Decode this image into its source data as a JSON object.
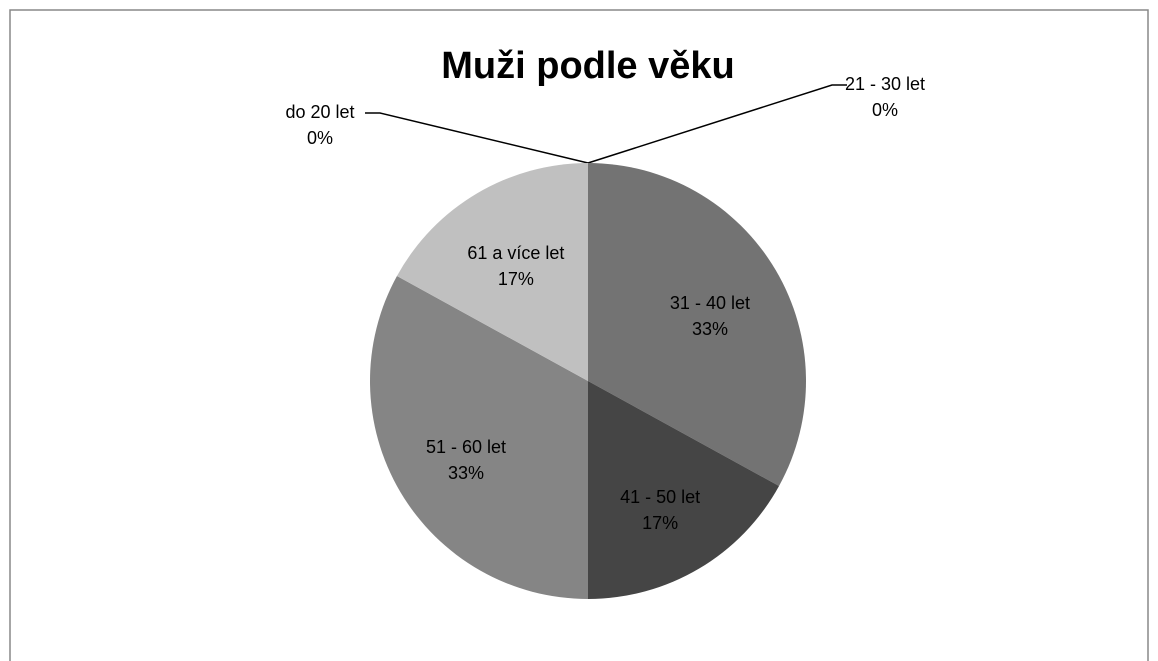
{
  "chart_data": {
    "type": "pie",
    "title": "Muži podle věku",
    "categories": [
      "do 20 let",
      "21 - 30 let",
      "31 - 40 let",
      "41 - 50 let",
      "51 - 60 let",
      "61 a více let"
    ],
    "values": [
      0,
      0,
      33,
      17,
      33,
      17
    ],
    "value_labels": [
      "0%",
      "0%",
      "33%",
      "17%",
      "33%",
      "17%"
    ],
    "colors": [
      "#4d4d4d",
      "#5e5e5e",
      "#737373",
      "#454545",
      "#858585",
      "#c0c0c0"
    ]
  }
}
